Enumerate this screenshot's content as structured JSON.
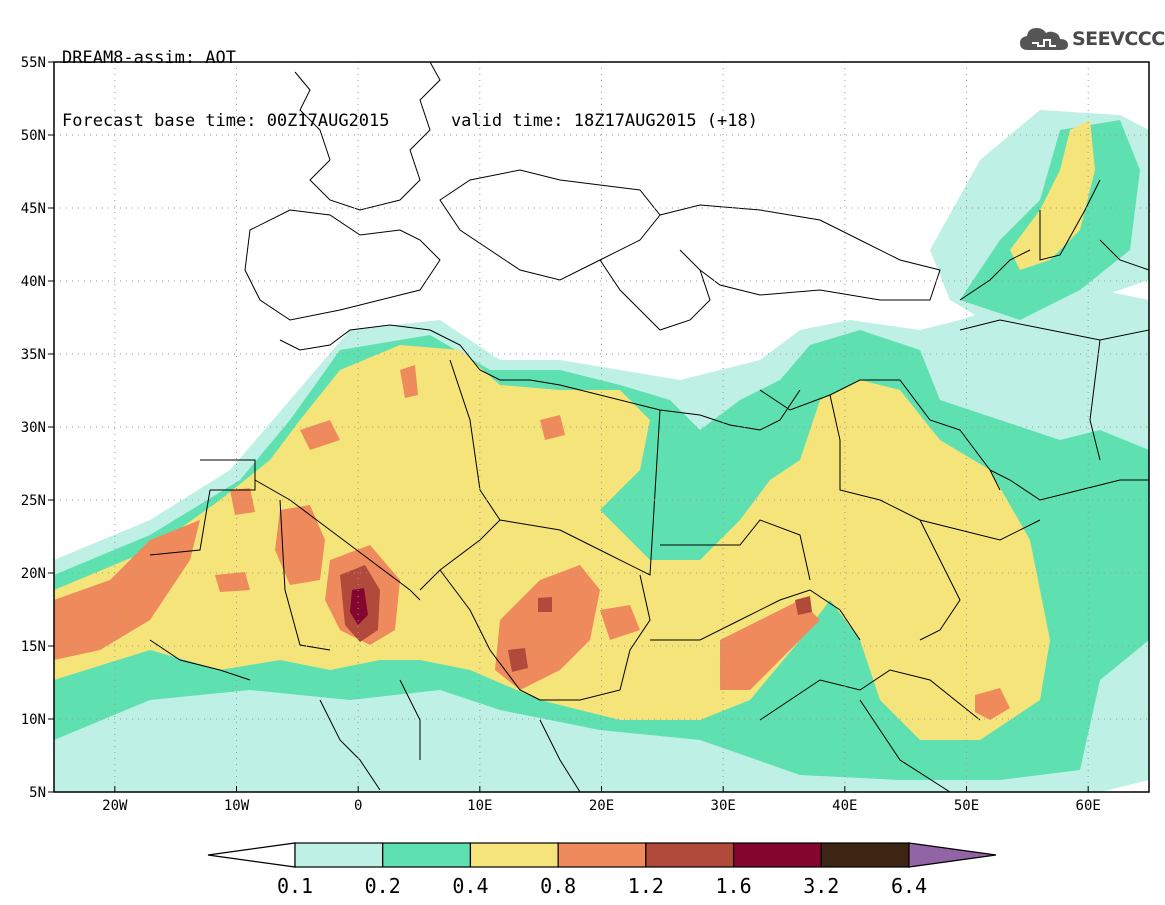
{
  "title": {
    "line1": "DREAM8-assim: AOT",
    "base_time_label": "Forecast base time: 00Z17AUG2015",
    "valid_time_label": "valid time: 18Z17AUG2015 (+18)"
  },
  "logo": {
    "text": "SEEVCCC",
    "icon": "cloud-logo-icon",
    "color": "#555555"
  },
  "map": {
    "lon_range": [
      -25,
      65
    ],
    "lat_range": [
      5,
      55
    ],
    "lat_ticks": [
      {
        "value": 5,
        "label": "5N"
      },
      {
        "value": 10,
        "label": "10N"
      },
      {
        "value": 15,
        "label": "15N"
      },
      {
        "value": 20,
        "label": "20N"
      },
      {
        "value": 25,
        "label": "25N"
      },
      {
        "value": 30,
        "label": "30N"
      },
      {
        "value": 35,
        "label": "35N"
      },
      {
        "value": 40,
        "label": "40N"
      },
      {
        "value": 45,
        "label": "45N"
      },
      {
        "value": 50,
        "label": "50N"
      },
      {
        "value": 55,
        "label": "55N"
      }
    ],
    "lon_ticks": [
      {
        "value": -20,
        "label": "20W"
      },
      {
        "value": -10,
        "label": "10W"
      },
      {
        "value": 0,
        "label": "0"
      },
      {
        "value": 10,
        "label": "10E"
      },
      {
        "value": 20,
        "label": "20E"
      },
      {
        "value": 30,
        "label": "30E"
      },
      {
        "value": 40,
        "label": "40E"
      },
      {
        "value": 50,
        "label": "50E"
      },
      {
        "value": 60,
        "label": "60E"
      }
    ],
    "grid": "dotted"
  },
  "legend": {
    "bins": [
      {
        "color": "#ffffff"
      },
      {
        "color": "#bff0e6"
      },
      {
        "color": "#5ee0b0"
      },
      {
        "color": "#f5e47a"
      },
      {
        "color": "#ee8a5c"
      },
      {
        "color": "#b24a3c"
      },
      {
        "color": "#84062e"
      },
      {
        "color": "#3d2514"
      },
      {
        "color": "#9164a6"
      }
    ],
    "labels": [
      "0.1",
      "0.2",
      "0.4",
      "0.8",
      "1.2",
      "1.6",
      "3.2",
      "6.4"
    ]
  }
}
